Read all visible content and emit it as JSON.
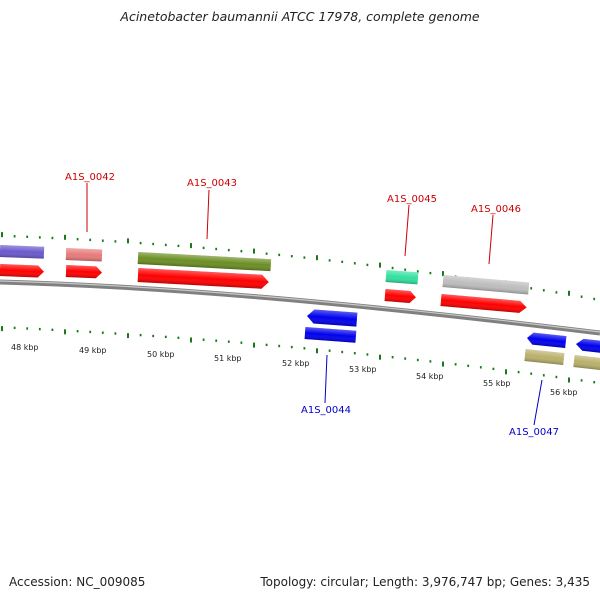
{
  "title": "Acinetobacter baumannii ATCC 17978, complete genome",
  "footer": {
    "accession": "Accession: NC_009085",
    "summary": "Topology: circular; Length: 3,976,747 bp; Genes: 3,435"
  },
  "colors": {
    "backbone": "#808080",
    "tick": "#1a7a1a",
    "forward_label": "#cc0000",
    "reverse_label": "#0000cc",
    "cds_forward": "#ff0000",
    "cds_reverse": "#0000ee"
  },
  "scale_labels": [
    "48 kbp",
    "49 kbp",
    "50 kbp",
    "51 kbp",
    "52 kbp",
    "53 kbp",
    "54 kbp",
    "55 kbp",
    "56 kbp"
  ],
  "gene_labels": [
    {
      "text": "A1S_0042",
      "strand": "forward"
    },
    {
      "text": "A1S_0043",
      "strand": "forward"
    },
    {
      "text": "A1S_0045",
      "strand": "forward"
    },
    {
      "text": "A1S_0046",
      "strand": "forward"
    },
    {
      "text": "A1S_0044",
      "strand": "reverse"
    },
    {
      "text": "A1S_0047",
      "strand": "reverse"
    }
  ]
}
